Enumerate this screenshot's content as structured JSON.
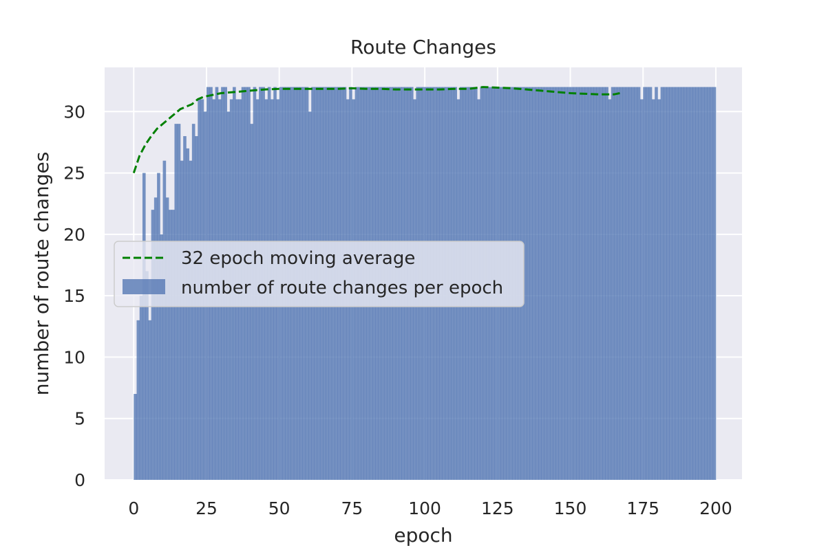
{
  "chart_data": {
    "type": "bar",
    "title": "Route Changes",
    "xlabel": "epoch",
    "ylabel": "number of route changes",
    "xlim": [
      -10,
      209
    ],
    "ylim": [
      0,
      33.6
    ],
    "xticks": [
      0,
      25,
      50,
      75,
      100,
      125,
      150,
      175,
      200
    ],
    "yticks": [
      0,
      5,
      10,
      15,
      20,
      25,
      30
    ],
    "grid": true,
    "legend_position": "center-left",
    "colors": {
      "background": "#eaeaf2",
      "grid": "#ffffff",
      "bar": "#4c72b0",
      "moving_average": "#008000",
      "text": "#262626"
    },
    "series": [
      {
        "name": "number of route changes per epoch",
        "type": "bar",
        "x_start": 0,
        "values": [
          7,
          13,
          15,
          25,
          17,
          13,
          22,
          23,
          25,
          20,
          26,
          23,
          22,
          22,
          29,
          29,
          26,
          28,
          27,
          26,
          29,
          28,
          31,
          31,
          30,
          32,
          32,
          31,
          32,
          31,
          32,
          32,
          30,
          31,
          32,
          31,
          31,
          32,
          32,
          32,
          29,
          32,
          31,
          32,
          32,
          31,
          32,
          31,
          32,
          31,
          32,
          32,
          32,
          32,
          32,
          32,
          32,
          32,
          32,
          32,
          30,
          32,
          32,
          32,
          32,
          32,
          32,
          32,
          32,
          32,
          32,
          32,
          32,
          31,
          32,
          31,
          32,
          32,
          32,
          32,
          32,
          32,
          32,
          32,
          32,
          32,
          32,
          32,
          32,
          32,
          32,
          32,
          32,
          32,
          32,
          32,
          31,
          32,
          32,
          32,
          32,
          32,
          32,
          32,
          32,
          32,
          32,
          32,
          32,
          32,
          32,
          31,
          32,
          32,
          32,
          32,
          32,
          32,
          31,
          32,
          32,
          32,
          32,
          32,
          32,
          32,
          32,
          32,
          32,
          32,
          32,
          32,
          32,
          32,
          32,
          32,
          32,
          32,
          32,
          32,
          32,
          32,
          32,
          32,
          32,
          32,
          32,
          32,
          32,
          32,
          32,
          32,
          32,
          32,
          32,
          32,
          32,
          32,
          32,
          32,
          32,
          32,
          32,
          31,
          32,
          32,
          32,
          32,
          32,
          32,
          32,
          32,
          32,
          32,
          31,
          32,
          32,
          32,
          31,
          32,
          31,
          32,
          32,
          32,
          32,
          32,
          32,
          32,
          32,
          32,
          32,
          32,
          32,
          32,
          32,
          32,
          32,
          32,
          32,
          32
        ]
      },
      {
        "name": "32 epoch moving average",
        "type": "line",
        "style": "dashed",
        "x": [
          0,
          2,
          4,
          6,
          8,
          10,
          12,
          14,
          16,
          18,
          20,
          22,
          24,
          26,
          28,
          30,
          35,
          40,
          45,
          50,
          55,
          60,
          65,
          70,
          75,
          80,
          85,
          90,
          95,
          100,
          105,
          110,
          115,
          120,
          125,
          130,
          135,
          140,
          145,
          150,
          155,
          160,
          165,
          167
        ],
        "values": [
          25.0,
          26.4,
          27.3,
          28.0,
          28.6,
          29.0,
          29.4,
          29.8,
          30.2,
          30.4,
          30.6,
          31.0,
          31.2,
          31.3,
          31.4,
          31.5,
          31.6,
          31.7,
          31.8,
          31.85,
          31.85,
          31.85,
          31.85,
          31.85,
          31.9,
          31.85,
          31.85,
          31.8,
          31.8,
          31.8,
          31.8,
          31.85,
          31.85,
          32.0,
          31.95,
          31.9,
          31.8,
          31.7,
          31.6,
          31.5,
          31.45,
          31.4,
          31.4,
          31.5
        ]
      }
    ]
  }
}
